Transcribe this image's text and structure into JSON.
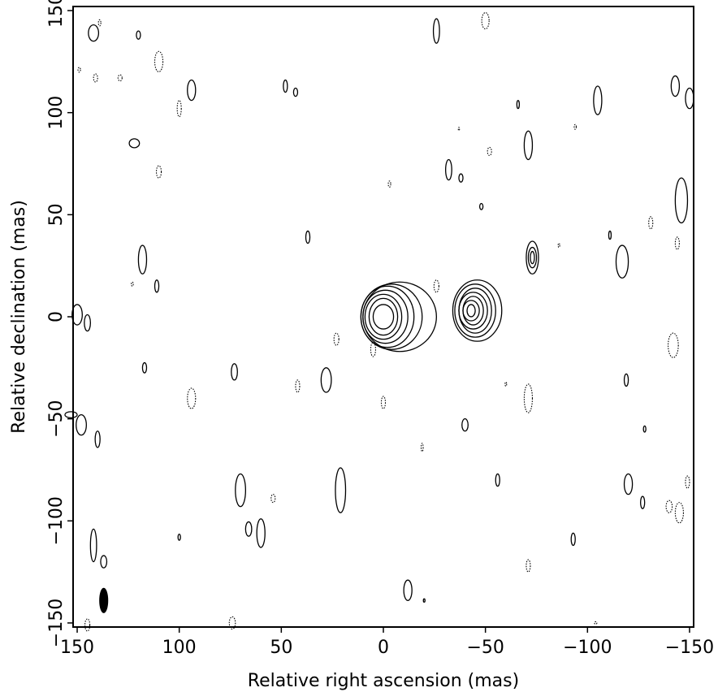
{
  "chart_data": {
    "type": "contour",
    "xlabel": "Relative right ascension (mas)",
    "ylabel": "Relative declination (mas)",
    "xlim": [
      152,
      -152
    ],
    "ylim": [
      -152,
      152
    ],
    "x_reversed": true,
    "x_ticks": [
      150,
      100,
      50,
      0,
      -50,
      -100,
      -150
    ],
    "x_tick_labels": [
      "150",
      "100",
      "50",
      "0",
      "−50",
      "−100",
      "−150"
    ],
    "y_ticks": [
      150,
      100,
      50,
      0,
      -50,
      -100,
      -150
    ],
    "y_tick_labels": [
      "150",
      "100",
      "50",
      "0",
      "−50",
      "−100",
      "−150"
    ],
    "grid": false,
    "legend": "none",
    "sources": [
      {
        "x": 0,
        "y": 0,
        "rx": [
          5,
          7,
          9,
          11,
          13,
          15,
          18
        ],
        "ry": [
          6,
          9,
          11,
          13,
          15,
          16,
          17
        ],
        "dx": [
          0,
          0,
          0,
          -1,
          -2,
          -4,
          -8
        ]
      },
      {
        "x": -43,
        "y": 3,
        "rx": [
          2,
          4,
          5,
          7,
          8,
          10,
          12
        ],
        "ry": [
          3,
          5,
          7,
          9,
          11,
          13,
          15
        ],
        "dx": [
          0,
          0,
          -1,
          -1,
          -2,
          -2,
          -3
        ]
      },
      {
        "x": -73,
        "y": 29,
        "rx": [
          1,
          2,
          3
        ],
        "ry": [
          3,
          5,
          8
        ],
        "dx": [
          0,
          0,
          0
        ]
      }
    ],
    "positive_contours": [
      [
        142,
        139,
        2.5,
        4
      ],
      [
        120,
        138,
        1,
        2
      ],
      [
        122,
        85,
        2.5,
        2.2
      ],
      [
        118,
        28,
        2,
        7
      ],
      [
        111,
        15,
        1,
        3
      ],
      [
        94,
        111,
        2,
        5
      ],
      [
        48,
        113,
        1,
        3
      ],
      [
        43,
        110,
        1,
        2
      ],
      [
        37,
        39,
        1,
        3
      ],
      [
        -26,
        140,
        1.5,
        6
      ],
      [
        -32,
        72,
        1.5,
        5
      ],
      [
        -38,
        68,
        1,
        2
      ],
      [
        -48,
        54,
        0.8,
        1.5
      ],
      [
        -66,
        104,
        0.6,
        2
      ],
      [
        -71,
        84,
        2,
        7
      ],
      [
        -105,
        106,
        2,
        7
      ],
      [
        -111,
        40,
        0.6,
        2
      ],
      [
        -117,
        27,
        3,
        8
      ],
      [
        -146,
        57,
        3,
        11
      ],
      [
        -143,
        113,
        2,
        5
      ],
      [
        -150,
        107,
        2,
        5
      ],
      [
        150,
        1,
        2.5,
        5
      ],
      [
        145,
        -3,
        1.5,
        4
      ],
      [
        148,
        -53,
        2.5,
        5
      ],
      [
        140,
        -60,
        1.2,
        4
      ],
      [
        117,
        -25,
        1,
        2.5
      ],
      [
        73,
        -27,
        1.5,
        4
      ],
      [
        28,
        -31,
        2.5,
        6
      ],
      [
        -40,
        -53,
        1.5,
        3
      ],
      [
        -56,
        -80,
        1,
        3
      ],
      [
        -119,
        -31,
        1,
        3
      ],
      [
        -128,
        -55,
        0.6,
        1.5
      ],
      [
        70,
        -85,
        2.5,
        8
      ],
      [
        66,
        -104,
        1.5,
        3.5
      ],
      [
        60,
        -106,
        2,
        7
      ],
      [
        21,
        -85,
        2.5,
        11
      ],
      [
        100,
        -108,
        0.6,
        1.5
      ],
      [
        142,
        -112,
        1.5,
        8
      ],
      [
        137,
        -120,
        1.5,
        3
      ],
      [
        -12,
        -134,
        2,
        5
      ],
      [
        -120,
        -82,
        2,
        5
      ],
      [
        -127,
        -91,
        1,
        3
      ],
      [
        -93,
        -109,
        1,
        3
      ],
      [
        -20,
        -139,
        0.4,
        0.8
      ],
      [
        153,
        -48,
        3,
        1.5
      ]
    ],
    "negative_contours": [
      [
        139,
        144,
        0.6,
        1.5
      ],
      [
        110,
        125,
        2,
        5
      ],
      [
        141,
        117,
        1,
        2
      ],
      [
        149,
        121,
        0.6,
        1.2
      ],
      [
        129,
        117,
        1,
        1.5
      ],
      [
        100,
        102,
        1,
        4
      ],
      [
        110,
        71,
        1.2,
        3
      ],
      [
        -50,
        145,
        1.8,
        4
      ],
      [
        -52,
        81,
        1,
        2
      ],
      [
        -37,
        92,
        0.3,
        0.8
      ],
      [
        -94,
        93,
        0.5,
        1.2
      ],
      [
        -3,
        65,
        0.6,
        1.5
      ],
      [
        -131,
        46,
        1,
        3
      ],
      [
        -144,
        36,
        1,
        3
      ],
      [
        -86,
        35,
        0.4,
        1
      ],
      [
        -26,
        15,
        1.2,
        3
      ],
      [
        123,
        16,
        0.5,
        1
      ],
      [
        23,
        -11,
        1.2,
        3
      ],
      [
        5,
        -16,
        1.2,
        3.5
      ],
      [
        -142,
        -14,
        2.5,
        6
      ],
      [
        94,
        -40,
        2,
        5
      ],
      [
        42,
        -34,
        1,
        3
      ],
      [
        0,
        -42,
        1,
        3
      ],
      [
        -19,
        -64,
        0.5,
        2
      ],
      [
        -60,
        -33,
        0.4,
        1
      ],
      [
        -71,
        -40,
        2,
        7
      ],
      [
        54,
        -89,
        1,
        2
      ],
      [
        -140,
        -93,
        1.5,
        3
      ],
      [
        -145,
        -96,
        2,
        5
      ],
      [
        -149,
        -81,
        1,
        3
      ],
      [
        -71,
        -122,
        1,
        3
      ],
      [
        -104,
        -150,
        0.6,
        0.6
      ],
      [
        74,
        -150,
        1.5,
        3
      ],
      [
        145,
        -151,
        1.2,
        3
      ]
    ],
    "beam": {
      "x": 137,
      "y": -139,
      "rx": 2,
      "ry": 6,
      "filled": true
    }
  }
}
